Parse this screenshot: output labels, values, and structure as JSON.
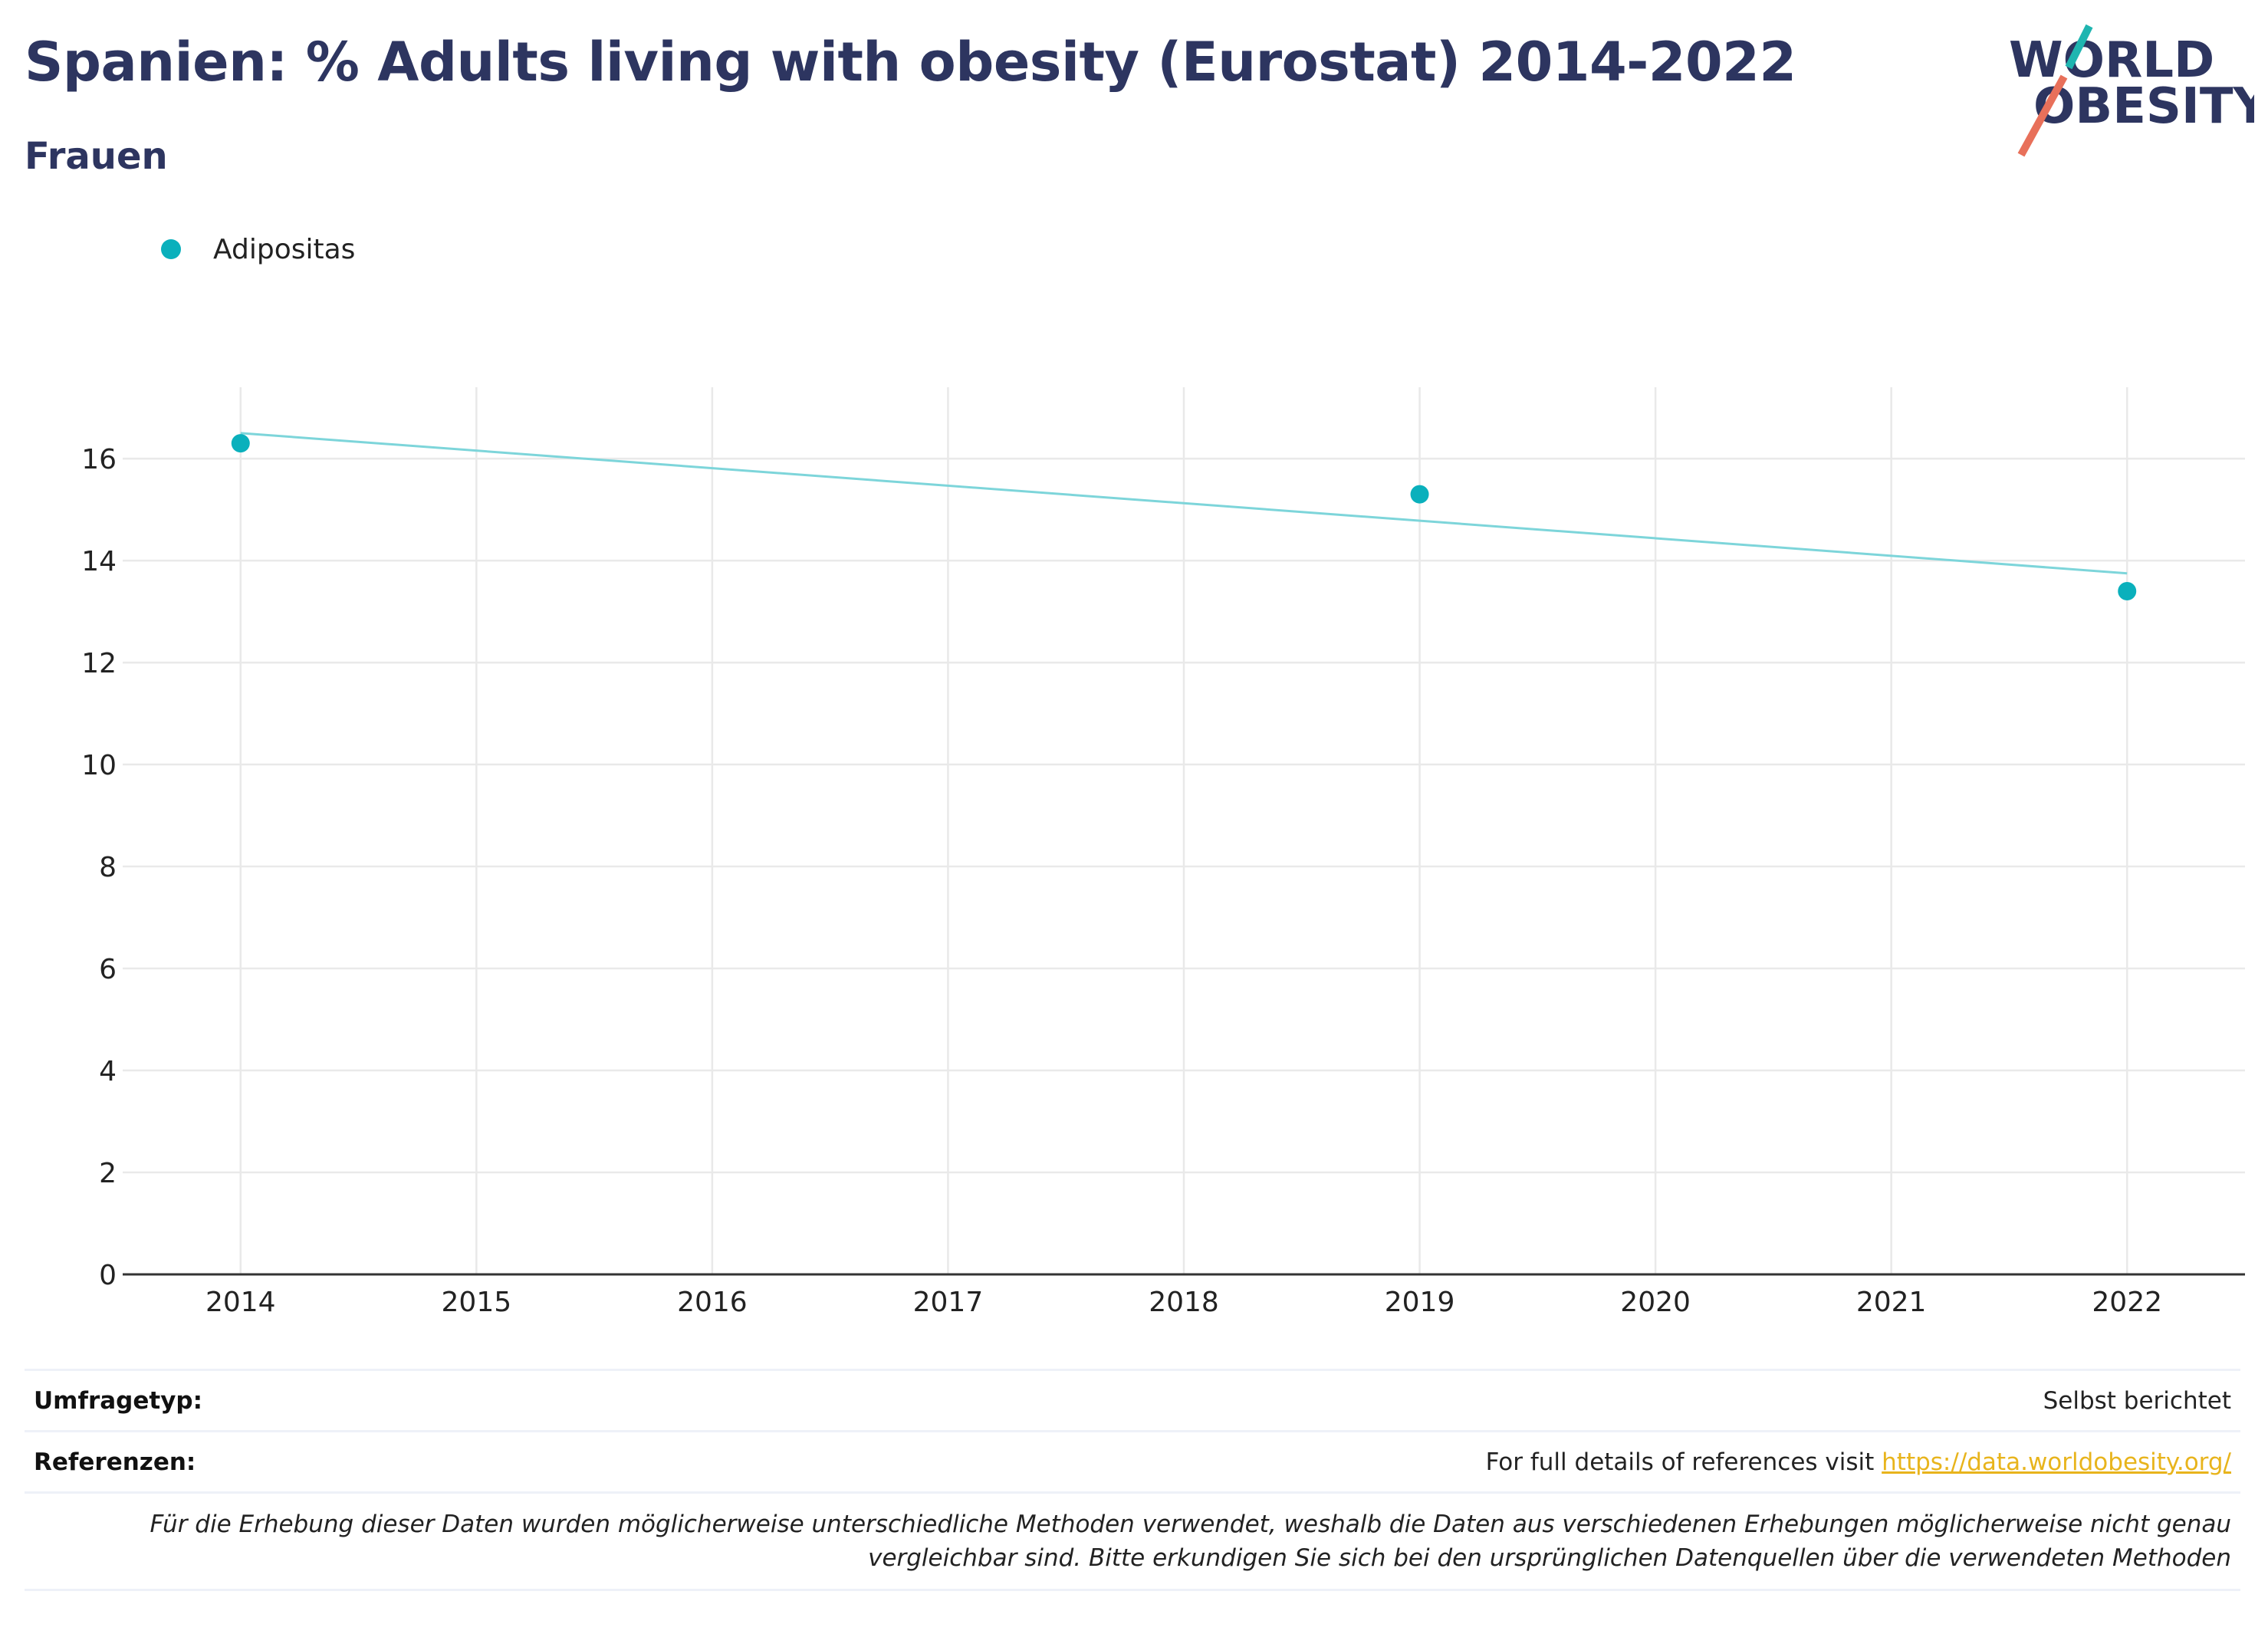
{
  "header": {
    "title": "Spanien: % Adults living with obesity (Eurostat) 2014-2022",
    "subtitle": "Frauen"
  },
  "logo": {
    "line1": "WORLD",
    "line2": "OBESITY"
  },
  "colors": {
    "series": "#0ab0bc",
    "trend": "#7dd5da",
    "title": "#2d3560",
    "link": "#e8b41c",
    "logo_teal": "#1fb5b0",
    "logo_red": "#e8705a"
  },
  "chart_data": {
    "type": "scatter",
    "title": "Spanien: % Adults living with obesity (Eurostat) 2014-2022",
    "subtitle": "Frauen",
    "xlabel": "",
    "ylabel": "",
    "legend_position": "top-left",
    "grid": true,
    "x_ticks": [
      "2014",
      "2015",
      "2016",
      "2017",
      "2018",
      "2019",
      "2020",
      "2021",
      "2022"
    ],
    "y_ticks": [
      "0",
      "2",
      "4",
      "6",
      "8",
      "10",
      "12",
      "14",
      "16"
    ],
    "xlim": [
      2013.5,
      2022.5
    ],
    "ylim": [
      0,
      17.4
    ],
    "series": [
      {
        "name": "Adipositas",
        "x": [
          2014,
          2019,
          2022
        ],
        "values": [
          16.3,
          15.3,
          13.4
        ]
      }
    ],
    "trendline": {
      "x": [
        2014,
        2022
      ],
      "values": [
        16.5,
        13.75
      ]
    }
  },
  "footer": {
    "survey_label": "Umfragetyp:",
    "survey_value": "Selbst berichtet",
    "ref_label": "Referenzen:",
    "ref_text": "For full details of references visit",
    "ref_link": "https://data.worldobesity.org/",
    "note_line1": "Für die Erhebung dieser Daten wurden möglicherweise unterschiedliche Methoden verwendet, weshalb die Daten aus verschiedenen Erhebungen möglicherweise nicht genau",
    "note_line2": "vergleichbar sind. Bitte erkundigen Sie sich bei den ursprünglichen Datenquellen über die verwendeten Methoden"
  }
}
